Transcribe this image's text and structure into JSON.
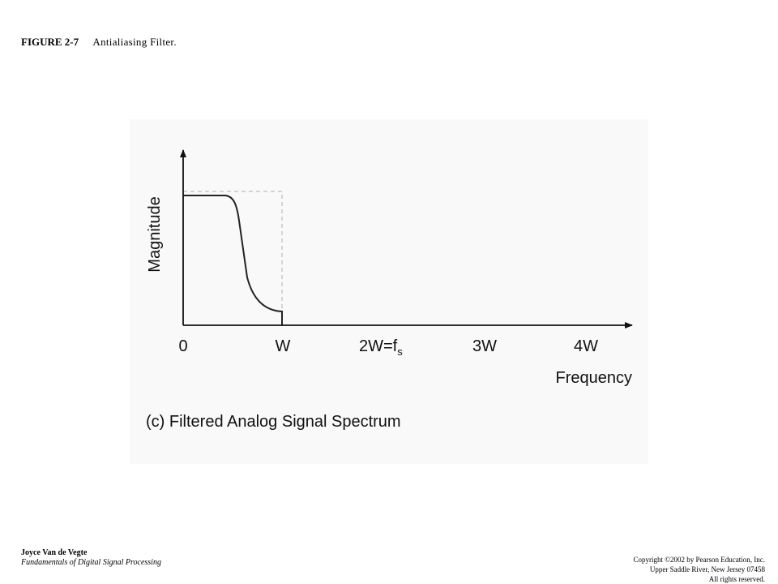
{
  "header": {
    "figure_label": "FIGURE 2-7",
    "caption": "Antialiasing Filter."
  },
  "diagram": {
    "y_axis_label": "Magnitude",
    "x_axis_label": "Frequency",
    "tick_labels": [
      "0",
      "W",
      "2W=f",
      "3W",
      "4W"
    ],
    "tick_subscript": "s",
    "subtitle": "(c) Filtered Analog Signal Spectrum"
  },
  "footer": {
    "author": "Joyce Van de Vegte",
    "book": "Fundamentals of Digital Signal Processing",
    "copyright_lines": [
      "Copyright ©2002 by Pearson Education, Inc.",
      "Upper Saddle River, New Jersey 07458",
      "All rights reserved."
    ]
  }
}
